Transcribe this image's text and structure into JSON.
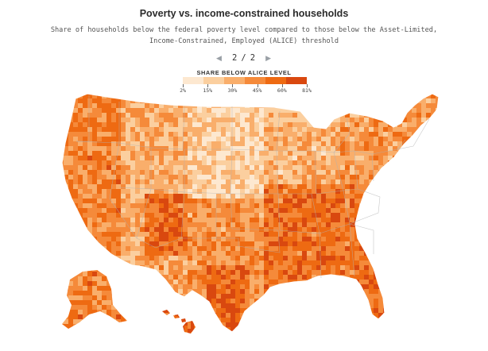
{
  "title": "Poverty vs. income-constrained households",
  "subtitle_line1": "Share of households below the federal poverty level compared to those below the Asset-Limited,",
  "subtitle_line2": "Income-Constrained, Employed (ALICE) threshold",
  "pager": {
    "current": "2",
    "separator": "/",
    "total": "2",
    "prev_icon": "triangle-left-icon",
    "next_icon": "triangle-right-icon"
  },
  "legend": {
    "title": "SHARE BELOW ALICE LEVEL",
    "labels": [
      "2%",
      "15%",
      "30%",
      "45%",
      "60%",
      "81%"
    ],
    "colors": [
      "#fde8d0",
      "#fbcf9f",
      "#f9ae6b",
      "#f58a3a",
      "#ee6a12",
      "#d9480f"
    ]
  },
  "map": {
    "outline_color": "#ffffff",
    "state_line_color": "#b0b0b0"
  }
}
